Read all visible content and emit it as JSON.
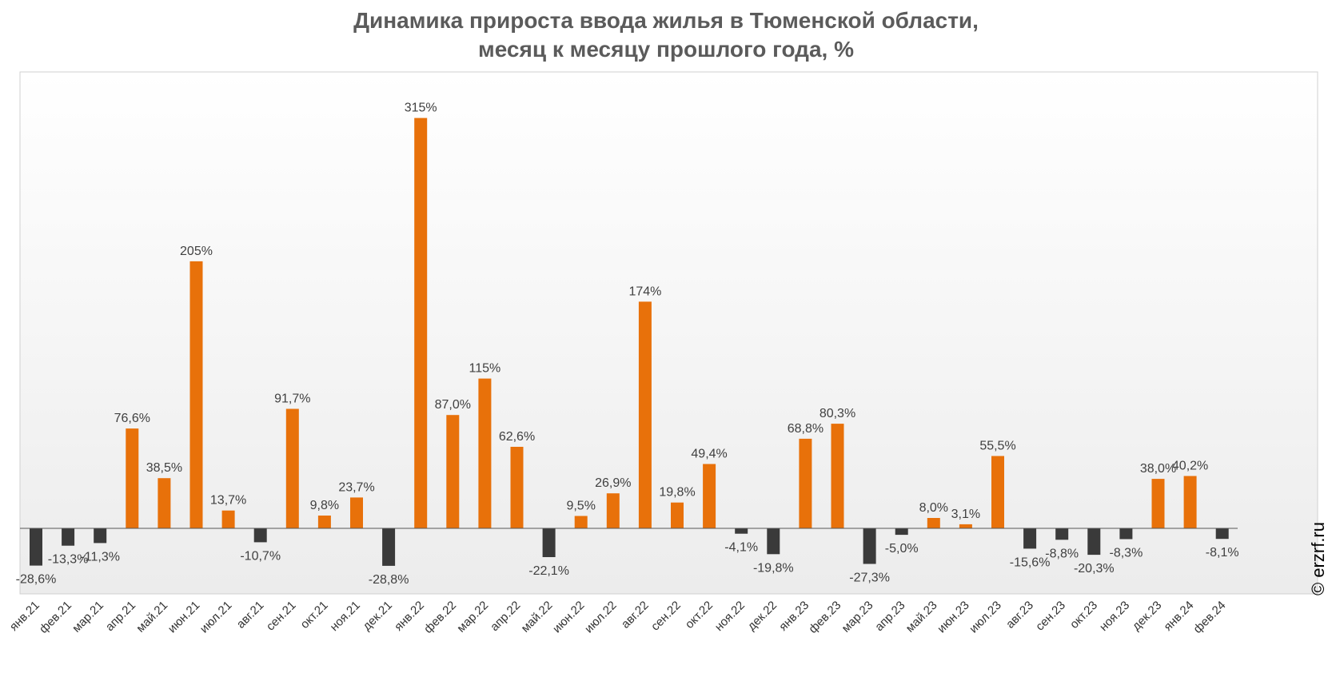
{
  "chart_data": {
    "type": "bar",
    "title_lines": [
      "Динамика прироста ввода жилья в Тюменской области,",
      "месяц к месяцу прошлого года, %"
    ],
    "categories": [
      "янв.21",
      "фев.21",
      "мар.21",
      "апр.21",
      "май.21",
      "июн.21",
      "июл.21",
      "авг.21",
      "сен.21",
      "окт.21",
      "ноя.21",
      "дек.21",
      "янв.22",
      "фев.22",
      "мар.22",
      "апр.22",
      "май.22",
      "июн.22",
      "июл.22",
      "авг.22",
      "сен.22",
      "окт.22",
      "ноя.22",
      "дек.22",
      "янв.23",
      "фев.23",
      "мар.23",
      "апр.23",
      "май.23",
      "июн.23",
      "июл.23",
      "авг.23",
      "сен.23",
      "окт.23",
      "ноя.23",
      "дек.23",
      "янв.24",
      "фев.24"
    ],
    "values": [
      -28.6,
      -13.3,
      -11.3,
      76.6,
      38.5,
      205,
      13.7,
      -10.7,
      91.7,
      9.8,
      23.7,
      -28.8,
      315,
      87.0,
      115,
      62.6,
      -22.1,
      9.5,
      26.9,
      174,
      19.8,
      49.4,
      -4.1,
      -19.8,
      68.8,
      80.3,
      -27.3,
      -5.0,
      8.0,
      3.1,
      55.5,
      -15.6,
      -8.8,
      -20.3,
      -8.3,
      38.0,
      40.2,
      -8.1
    ],
    "data_labels": [
      "-28,6%",
      "-13,3%",
      "-11,3%",
      "76,6%",
      "38,5%",
      "205%",
      "13,7%",
      "-10,7%",
      "91,7%",
      "9,8%",
      "23,7%",
      "-28,8%",
      "315%",
      "87,0%",
      "115%",
      "62,6%",
      "-22,1%",
      "9,5%",
      "26,9%",
      "174%",
      "19,8%",
      "49,4%",
      "-4,1%",
      "-19,8%",
      "68,8%",
      "80,3%",
      "-27,3%",
      "-5,0%",
      "8,0%",
      "3,1%",
      "55,5%",
      "-15,6%",
      "-8,8%",
      "-20,3%",
      "-8,3%",
      "38,0%",
      "40,2%",
      "-8,1%"
    ],
    "ylim": [
      -48,
      335
    ],
    "grid": false,
    "legend": "none",
    "colors": {
      "positive": "#e8710a",
      "negative": "#3a3a3a",
      "label": "#404040",
      "title": "#5b5b5b",
      "axis": "#555555"
    }
  },
  "footer": {
    "copyright": "© erzrf.ru"
  }
}
